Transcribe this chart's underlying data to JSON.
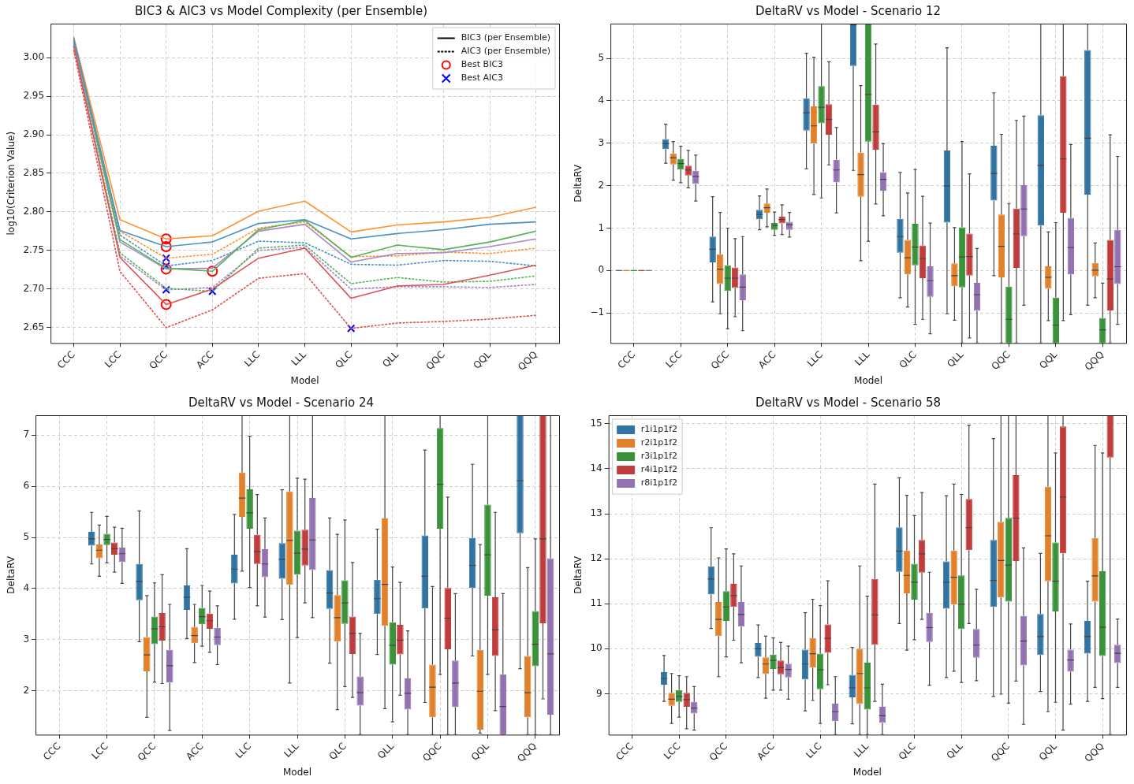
{
  "chart_data": [
    {
      "type": "line",
      "title": "BIC3 & AIC3 vs Model Complexity (per Ensemble)",
      "xlabel": "Model",
      "ylabel": "log10(Criterion Value)",
      "categories": [
        "CCC",
        "LCC",
        "QCC",
        "ACC",
        "LLC",
        "LLL",
        "QLC",
        "QLL",
        "QQC",
        "QQL",
        "QQQ"
      ],
      "ylim": [
        2.63,
        3.044
      ],
      "yticks": [
        2.65,
        {
          "value": 2.7,
          "label": "2.70"
        },
        2.75,
        {
          "value": 2.8,
          "label": "2.80"
        },
        2.85,
        {
          "value": 2.9,
          "label": "2.90"
        },
        2.95,
        {
          "value": 3.0,
          "label": "3.00"
        }
      ],
      "grid": true,
      "legend": "top right",
      "series": [
        {
          "color": "#4b92c3",
          "line_style": "solid",
          "values": [
            3.025,
            2.776,
            2.755,
            2.761,
            2.785,
            2.79,
            2.765,
            2.772,
            2.777,
            2.784,
            2.787
          ]
        },
        {
          "color": "#ff9232",
          "line_style": "solid",
          "values": [
            3.027,
            2.79,
            2.765,
            2.769,
            2.801,
            2.814,
            2.774,
            2.783,
            2.787,
            2.793,
            2.806
          ]
        },
        {
          "color": "#56b356",
          "line_style": "solid",
          "values": [
            3.026,
            2.764,
            2.727,
            2.723,
            2.777,
            2.789,
            2.741,
            2.757,
            2.751,
            2.761,
            2.775
          ]
        },
        {
          "color": "#de5253",
          "line_style": "solid",
          "values": [
            3.015,
            2.741,
            2.68,
            2.7,
            2.74,
            2.753,
            2.688,
            2.704,
            2.706,
            2.718,
            2.731
          ]
        },
        {
          "color": "#a985ca",
          "line_style": "solid",
          "values": [
            3.022,
            2.761,
            2.726,
            2.727,
            2.775,
            2.784,
            2.735,
            2.746,
            2.747,
            2.755,
            2.765
          ]
        },
        {
          "color": "#4b92c3",
          "line_style": "dashed",
          "values": [
            3.02,
            2.77,
            2.73,
            2.737,
            2.762,
            2.76,
            2.732,
            2.731,
            2.737,
            2.736,
            2.73
          ]
        },
        {
          "color": "#ff9232",
          "line_style": "dashed",
          "values": [
            3.022,
            2.775,
            2.74,
            2.745,
            2.779,
            2.787,
            2.742,
            2.743,
            2.748,
            2.746,
            2.753
          ]
        },
        {
          "color": "#56b356",
          "line_style": "dashed",
          "values": [
            3.018,
            2.747,
            2.701,
            2.697,
            2.753,
            2.757,
            2.707,
            2.715,
            2.709,
            2.71,
            2.717
          ]
        },
        {
          "color": "#de5253",
          "line_style": "dashed",
          "values": [
            3.01,
            2.723,
            2.65,
            2.673,
            2.714,
            2.72,
            2.649,
            2.656,
            2.658,
            2.661,
            2.666
          ]
        },
        {
          "color": "#a985ca",
          "line_style": "dashed",
          "values": [
            3.015,
            2.743,
            2.699,
            2.702,
            2.75,
            2.754,
            2.7,
            2.703,
            2.703,
            2.702,
            2.706
          ]
        },
        {
          "name": "BIC3 (per Ensemble)",
          "color": "#000000",
          "line_style": "solid",
          "values": [
            null,
            null,
            null,
            null,
            null,
            null,
            null,
            null,
            null,
            null,
            null
          ]
        },
        {
          "name": "AIC3 (per Ensemble)",
          "color": "#000000",
          "line_style": "dashed",
          "values": [
            null,
            null,
            null,
            null,
            null,
            null,
            null,
            null,
            null,
            null,
            null
          ]
        },
        {
          "name": "Best BIC3",
          "type": "scatter",
          "marker": "circle",
          "color": "#ff0000",
          "x": [
            "QCC",
            "QCC",
            "ACC",
            "QCC",
            "QCC"
          ],
          "values": [
            2.755,
            2.765,
            2.723,
            2.68,
            2.726
          ]
        },
        {
          "name": "Best AIC3",
          "type": "scatter",
          "marker": "cross",
          "color": "#0000ff",
          "x": [
            "QCC",
            "QCC",
            "ACC",
            "QLC",
            "QCC"
          ],
          "values": [
            2.73,
            2.74,
            2.697,
            2.649,
            2.699
          ]
        }
      ]
    },
    {
      "type": "box",
      "title": "DeltaRV vs Model - Scenario 12",
      "xlabel": "Model",
      "ylabel": "DeltaRV",
      "categories": [
        "CCC",
        "LCC",
        "QCC",
        "ACC",
        "LLC",
        "LLL",
        "QLC",
        "QLL",
        "QQC",
        "QQL",
        "QQQ"
      ],
      "ylim": [
        -1.71,
        5.82
      ],
      "yticks": [
        {
          "value": -1,
          "label": "−1"
        },
        0,
        1,
        2,
        3,
        4,
        5
      ],
      "grid": true,
      "series": [
        {
          "color": "#3274a1",
          "boxes": [
            {
              "low": 0,
              "q1": 0,
              "median": 0,
              "q3": 0,
              "high": 0
            },
            {
              "low": 2.53,
              "q1": 2.86,
              "median": 2.99,
              "q3": 3.1,
              "high": 3.45
            },
            {
              "low": -0.74,
              "q1": 0.19,
              "median": 0.5,
              "q3": 0.8,
              "high": 1.74
            },
            {
              "low": 0.96,
              "q1": 1.21,
              "median": 1.32,
              "q3": 1.43,
              "high": 1.76
            },
            {
              "low": 2.4,
              "q1": 3.3,
              "median": 3.72,
              "q3": 4.06,
              "high": 5.12
            },
            {
              "low": 2.36,
              "q1": 4.82,
              "median": 5.79,
              "q3": 5.82,
              "high": 5.82
            },
            {
              "low": -0.64,
              "q1": 0.42,
              "median": 0.8,
              "q3": 1.22,
              "high": 2.31
            },
            {
              "low": -1.02,
              "q1": 1.13,
              "median": 1.99,
              "q3": 2.83,
              "high": 5.25
            },
            {
              "low": -0.12,
              "q1": 1.65,
              "median": 2.29,
              "q3": 2.94,
              "high": 4.19
            },
            {
              "low": -1.71,
              "q1": 1.06,
              "median": 2.48,
              "q3": 3.66,
              "high": 5.82
            },
            {
              "low": -0.82,
              "q1": 1.79,
              "median": 3.12,
              "q3": 5.2,
              "high": 5.82
            }
          ]
        },
        {
          "color": "#e1812c",
          "boxes": [
            {
              "low": 0,
              "q1": 0,
              "median": 0,
              "q3": 0,
              "high": 0
            },
            {
              "low": 2.13,
              "q1": 2.5,
              "median": 2.66,
              "q3": 2.76,
              "high": 3.04
            },
            {
              "low": -1.02,
              "q1": -0.32,
              "median": 0.03,
              "q3": 0.38,
              "high": 1.37
            },
            {
              "low": 1.03,
              "q1": 1.36,
              "median": 1.48,
              "q3": 1.58,
              "high": 1.92
            },
            {
              "low": 1.79,
              "q1": 2.99,
              "median": 3.41,
              "q3": 3.87,
              "high": 5.03
            },
            {
              "low": 0.23,
              "q1": 1.74,
              "median": 2.26,
              "q3": 2.78,
              "high": 4.36
            },
            {
              "low": -0.86,
              "q1": -0.09,
              "median": 0.3,
              "q3": 0.72,
              "high": 1.83
            },
            {
              "low": -1.17,
              "q1": -0.37,
              "median": -0.12,
              "q3": 0.17,
              "high": 1.01
            },
            {
              "low": -1.71,
              "q1": -0.16,
              "median": 0.57,
              "q3": 1.32,
              "high": 3.21
            },
            {
              "low": -1.18,
              "q1": -0.43,
              "median": -0.16,
              "q3": 0.1,
              "high": 0.91
            },
            {
              "low": -0.64,
              "q1": -0.14,
              "median": 0.01,
              "q3": 0.18,
              "high": 0.65
            }
          ]
        },
        {
          "color": "#3a923a",
          "boxes": [
            {
              "low": 0,
              "q1": 0,
              "median": 0,
              "q3": 0,
              "high": 0
            },
            {
              "low": 2.07,
              "q1": 2.38,
              "median": 2.52,
              "q3": 2.63,
              "high": 2.93
            },
            {
              "low": -1.37,
              "q1": -0.48,
              "median": -0.18,
              "q3": 0.12,
              "high": 1.0
            },
            {
              "low": 0.83,
              "q1": 0.96,
              "median": 1.06,
              "q3": 1.12,
              "high": 1.38
            },
            {
              "low": 1.71,
              "q1": 3.47,
              "median": 3.85,
              "q3": 4.35,
              "high": 5.82
            },
            {
              "low": 0.69,
              "q1": 3.04,
              "median": 4.15,
              "q3": 5.82,
              "high": 5.82
            },
            {
              "low": -1.27,
              "q1": 0.12,
              "median": 0.55,
              "q3": 1.1,
              "high": 2.38
            },
            {
              "low": -1.71,
              "q1": -0.4,
              "median": 0.32,
              "q3": 1.02,
              "high": 3.04
            },
            {
              "low": -1.71,
              "q1": -1.71,
              "median": -1.15,
              "q3": -0.38,
              "high": 1.58
            },
            {
              "low": -1.71,
              "q1": -1.71,
              "median": -1.29,
              "q3": -0.64,
              "high": 1.13
            },
            {
              "low": -1.71,
              "q1": -1.71,
              "median": -1.4,
              "q3": -1.12,
              "high": -0.3
            }
          ]
        },
        {
          "color": "#c03d3e",
          "boxes": [
            {
              "low": 0,
              "q1": 0,
              "median": 0,
              "q3": 0,
              "high": 0
            },
            {
              "low": 1.95,
              "q1": 2.24,
              "median": 2.37,
              "q3": 2.47,
              "high": 2.83
            },
            {
              "low": -1.09,
              "q1": -0.41,
              "median": -0.18,
              "q3": 0.07,
              "high": 0.75
            },
            {
              "low": 0.85,
              "q1": 1.11,
              "median": 1.2,
              "q3": 1.27,
              "high": 1.55
            },
            {
              "low": 2.49,
              "q1": 3.2,
              "median": 3.56,
              "q3": 3.92,
              "high": 4.92
            },
            {
              "low": 1.57,
              "q1": 2.85,
              "median": 3.27,
              "q3": 3.91,
              "high": 5.34
            },
            {
              "low": -1.15,
              "q1": -0.18,
              "median": 0.28,
              "q3": 0.59,
              "high": 1.75
            },
            {
              "low": -1.59,
              "q1": -0.12,
              "median": 0.33,
              "q3": 0.87,
              "high": 2.28
            },
            {
              "low": -1.71,
              "q1": 0.06,
              "median": 0.86,
              "q3": 1.46,
              "high": 3.54
            },
            {
              "low": -1.18,
              "q1": 1.36,
              "median": 2.63,
              "q3": 4.58,
              "high": 5.82
            },
            {
              "low": -1.71,
              "q1": -0.94,
              "median": -0.2,
              "q3": 0.72,
              "high": 3.2
            }
          ]
        },
        {
          "color": "#9372b2",
          "boxes": [
            {
              "low": 0,
              "q1": 0,
              "median": 0,
              "q3": 0,
              "high": 0
            },
            {
              "low": 1.64,
              "q1": 2.04,
              "median": 2.22,
              "q3": 2.35,
              "high": 2.72
            },
            {
              "low": -1.42,
              "q1": -0.7,
              "median": -0.39,
              "q3": -0.09,
              "high": 0.8
            },
            {
              "low": 0.79,
              "q1": 0.96,
              "median": 1.08,
              "q3": 1.15,
              "high": 1.37
            },
            {
              "low": 1.36,
              "q1": 2.08,
              "median": 2.37,
              "q3": 2.61,
              "high": 3.37
            },
            {
              "low": 1.29,
              "q1": 1.88,
              "median": 2.15,
              "q3": 2.32,
              "high": 2.99
            },
            {
              "low": -1.49,
              "q1": -0.62,
              "median": -0.24,
              "q3": 0.1,
              "high": 1.12
            },
            {
              "low": -1.71,
              "q1": -0.95,
              "median": -0.57,
              "q3": -0.29,
              "high": 0.52
            },
            {
              "low": -0.82,
              "q1": 0.81,
              "median": 1.45,
              "q3": 2.01,
              "high": 3.64
            },
            {
              "low": -1.04,
              "q1": -0.09,
              "median": 0.54,
              "q3": 1.24,
              "high": 2.97
            },
            {
              "low": -1.27,
              "q1": -0.32,
              "median": 0.09,
              "q3": 0.96,
              "high": 2.69
            }
          ]
        }
      ]
    },
    {
      "type": "box",
      "title": "DeltaRV vs Model - Scenario 24",
      "xlabel": "Model",
      "ylabel": "DeltaRV",
      "categories": [
        "CCC",
        "LCC",
        "QCC",
        "ACC",
        "LLC",
        "LLL",
        "QLC",
        "QLL",
        "QQC",
        "QQL",
        "QQQ"
      ],
      "ylim": [
        1.14,
        7.39
      ],
      "yticks": [
        2,
        3,
        4,
        5,
        6,
        7
      ],
      "grid": true,
      "series": [
        {
          "color": "#3274a1",
          "boxes": [
            null,
            {
              "low": 4.48,
              "q1": 4.84,
              "median": 4.97,
              "q3": 5.11,
              "high": 5.49
            },
            {
              "low": 2.96,
              "q1": 3.77,
              "median": 4.14,
              "q3": 4.48,
              "high": 5.52
            },
            {
              "low": 3.02,
              "q1": 3.58,
              "median": 3.83,
              "q3": 4.06,
              "high": 4.78
            },
            {
              "low": 3.4,
              "q1": 4.1,
              "median": 4.38,
              "q3": 4.66,
              "high": 5.45
            },
            {
              "low": 3.39,
              "q1": 4.19,
              "median": 4.57,
              "q3": 4.89,
              "high": 5.93
            },
            {
              "low": 2.54,
              "q1": 3.6,
              "median": 3.91,
              "q3": 4.36,
              "high": 5.38
            },
            {
              "low": 2.71,
              "q1": 3.5,
              "median": 3.8,
              "q3": 4.17,
              "high": 5.16
            },
            {
              "low": 1.77,
              "q1": 3.61,
              "median": 4.24,
              "q3": 5.04,
              "high": 6.71
            },
            {
              "low": 2.68,
              "q1": 4.01,
              "median": 4.45,
              "q3": 4.99,
              "high": 6.43
            },
            {
              "low": 2.43,
              "q1": 5.08,
              "median": 6.11,
              "q3": 7.39,
              "high": 7.39
            }
          ]
        },
        {
          "color": "#e1812c",
          "boxes": [
            null,
            {
              "low": 4.24,
              "q1": 4.59,
              "median": 4.75,
              "q3": 4.86,
              "high": 5.24
            },
            {
              "low": 1.48,
              "q1": 2.38,
              "median": 2.7,
              "q3": 3.05,
              "high": 3.86
            },
            {
              "low": 2.55,
              "q1": 2.93,
              "median": 3.08,
              "q3": 3.25,
              "high": 3.69
            },
            {
              "low": 4.34,
              "q1": 5.4,
              "median": 5.77,
              "q3": 6.27,
              "high": 7.39
            },
            {
              "low": 2.15,
              "q1": 4.07,
              "median": 4.94,
              "q3": 5.9,
              "high": 7.39
            },
            {
              "low": 1.63,
              "q1": 2.96,
              "median": 3.43,
              "q3": 3.87,
              "high": 5.06
            },
            {
              "low": 1.65,
              "q1": 3.27,
              "median": 4.08,
              "q3": 5.37,
              "high": 7.39
            },
            {
              "low": 1.14,
              "q1": 1.48,
              "median": 2.07,
              "q3": 2.51,
              "high": 4.04
            },
            {
              "low": 1.17,
              "q1": 1.24,
              "median": 1.99,
              "q3": 2.8,
              "high": 4.86
            },
            {
              "low": 1.14,
              "q1": 1.48,
              "median": 1.96,
              "q3": 2.68,
              "high": 4.41
            }
          ]
        },
        {
          "color": "#3a923a",
          "boxes": [
            null,
            {
              "low": 4.5,
              "q1": 4.85,
              "median": 4.96,
              "q3": 5.07,
              "high": 5.41
            },
            {
              "low": 2.17,
              "q1": 2.91,
              "median": 3.21,
              "q3": 3.45,
              "high": 4.11
            },
            {
              "low": 2.87,
              "q1": 3.3,
              "median": 3.45,
              "q3": 3.62,
              "high": 4.06
            },
            {
              "low": 4.02,
              "q1": 5.17,
              "median": 5.48,
              "q3": 5.94,
              "high": 6.98
            },
            {
              "low": 3.04,
              "q1": 4.27,
              "median": 4.69,
              "q3": 5.13,
              "high": 6.16
            },
            {
              "low": 2.08,
              "q1": 3.31,
              "median": 3.72,
              "q3": 4.16,
              "high": 5.34
            },
            {
              "low": 1.39,
              "q1": 2.51,
              "median": 2.89,
              "q3": 3.34,
              "high": 4.42
            },
            {
              "low": 2.32,
              "q1": 5.17,
              "median": 6.04,
              "q3": 7.14,
              "high": 7.39
            },
            {
              "low": 2.32,
              "q1": 3.86,
              "median": 4.66,
              "q3": 5.64,
              "high": 7.39
            },
            {
              "low": 1.14,
              "q1": 2.48,
              "median": 2.91,
              "q3": 3.56,
              "high": 4.97
            }
          ]
        },
        {
          "color": "#c03d3e",
          "boxes": [
            null,
            {
              "low": 4.32,
              "q1": 4.66,
              "median": 4.78,
              "q3": 4.9,
              "high": 5.2
            },
            {
              "low": 2.14,
              "q1": 2.98,
              "median": 3.25,
              "q3": 3.52,
              "high": 4.27
            },
            {
              "low": 2.75,
              "q1": 3.21,
              "median": 3.37,
              "q3": 3.51,
              "high": 3.95
            },
            {
              "low": 3.66,
              "q1": 4.48,
              "median": 4.72,
              "q3": 5.05,
              "high": 5.84
            },
            {
              "low": 3.72,
              "q1": 4.45,
              "median": 4.77,
              "q3": 5.15,
              "high": 6.14
            },
            {
              "low": 1.87,
              "q1": 2.72,
              "median": 3.12,
              "q3": 3.45,
              "high": 4.51
            },
            {
              "low": 1.91,
              "q1": 2.71,
              "median": 2.99,
              "q3": 3.29,
              "high": 4.12
            },
            {
              "low": 1.14,
              "q1": 2.81,
              "median": 3.42,
              "q3": 4.01,
              "high": 5.79
            },
            {
              "low": 1.61,
              "q1": 2.68,
              "median": 3.19,
              "q3": 3.83,
              "high": 5.49
            },
            {
              "low": 1.84,
              "q1": 3.32,
              "median": 4.97,
              "q3": 7.39,
              "high": 7.39
            }
          ]
        },
        {
          "color": "#9372b2",
          "boxes": [
            null,
            {
              "low": 4.1,
              "q1": 4.52,
              "median": 4.68,
              "q3": 4.8,
              "high": 5.18
            },
            {
              "low": 1.22,
              "q1": 2.16,
              "median": 2.49,
              "q3": 2.8,
              "high": 3.69
            },
            {
              "low": 2.51,
              "q1": 2.89,
              "median": 3.05,
              "q3": 3.23,
              "high": 3.66
            },
            {
              "low": 3.44,
              "q1": 4.22,
              "median": 4.48,
              "q3": 4.77,
              "high": 5.38
            },
            {
              "low": 3.43,
              "q1": 4.36,
              "median": 4.95,
              "q3": 5.77,
              "high": 7.39
            },
            {
              "low": 1.14,
              "q1": 1.71,
              "median": 1.96,
              "q3": 2.28,
              "high": 3.12
            },
            {
              "low": 1.14,
              "q1": 1.63,
              "median": 1.95,
              "q3": 2.24,
              "high": 3.17
            },
            {
              "low": 1.14,
              "q1": 1.68,
              "median": 2.15,
              "q3": 2.59,
              "high": 3.9
            },
            {
              "low": 1.14,
              "q1": 1.14,
              "median": 1.69,
              "q3": 2.32,
              "high": 3.9
            },
            {
              "low": 1.14,
              "q1": 1.53,
              "median": 2.72,
              "q3": 4.59,
              "high": 7.39
            }
          ]
        }
      ]
    },
    {
      "type": "box",
      "title": "DeltaRV vs Model - Scenario 58",
      "xlabel": "Model",
      "ylabel": "DeltaRV",
      "categories": [
        "CCC",
        "LCC",
        "QCC",
        "ACC",
        "LLC",
        "LLL",
        "QLC",
        "QLL",
        "QQC",
        "QQL",
        "QQQ"
      ],
      "ylim": [
        8.09,
        15.19
      ],
      "yticks": [
        9,
        10,
        11,
        12,
        13,
        14,
        15
      ],
      "grid": true,
      "legend": "top left",
      "series": [
        {
          "name": "r1i1p1f2",
          "color": "#3274a1",
          "boxes": [
            null,
            {
              "low": 8.83,
              "q1": 9.2,
              "median": 9.34,
              "q3": 9.48,
              "high": 9.85
            },
            {
              "low": 10.45,
              "q1": 11.21,
              "median": 11.55,
              "q3": 11.83,
              "high": 12.69
            },
            {
              "low": 9.36,
              "q1": 9.82,
              "median": 10.0,
              "q3": 10.13,
              "high": 10.53
            },
            {
              "low": 8.62,
              "q1": 9.32,
              "median": 9.66,
              "q3": 9.98,
              "high": 10.8
            },
            {
              "low": 8.33,
              "q1": 8.92,
              "median": 9.13,
              "q3": 9.42,
              "high": 10.03
            },
            {
              "low": 10.56,
              "q1": 11.71,
              "median": 12.17,
              "q3": 12.7,
              "high": 13.8
            },
            {
              "low": 9.36,
              "q1": 10.89,
              "median": 11.48,
              "q3": 11.94,
              "high": 13.4
            },
            {
              "low": 8.94,
              "q1": 10.93,
              "median": 11.52,
              "q3": 12.42,
              "high": 14.67
            },
            {
              "low": 9.05,
              "q1": 9.86,
              "median": 10.27,
              "q3": 10.77,
              "high": 12.12
            },
            {
              "low": 8.83,
              "q1": 9.89,
              "median": 10.27,
              "q3": 10.62,
              "high": 11.5
            }
          ]
        },
        {
          "name": "r2i1p1f2",
          "color": "#e1812c",
          "boxes": [
            null,
            {
              "low": 8.34,
              "q1": 8.73,
              "median": 8.88,
              "q3": 9.02,
              "high": 9.45
            },
            {
              "low": 9.38,
              "q1": 10.28,
              "median": 10.65,
              "q3": 11.04,
              "high": 12.02
            },
            {
              "low": 8.9,
              "q1": 9.44,
              "median": 9.66,
              "q3": 9.81,
              "high": 10.28
            },
            {
              "low": 8.85,
              "q1": 9.58,
              "median": 9.89,
              "q3": 10.24,
              "high": 11.1
            },
            {
              "low": 8.09,
              "q1": 8.77,
              "median": 9.45,
              "q3": 10.0,
              "high": 11.84
            },
            {
              "low": 9.97,
              "q1": 11.23,
              "median": 11.63,
              "q3": 12.18,
              "high": 13.41
            },
            {
              "low": 9.5,
              "q1": 10.98,
              "median": 11.59,
              "q3": 12.18,
              "high": 13.66
            },
            {
              "low": 8.99,
              "q1": 11.14,
              "median": 11.96,
              "q3": 12.82,
              "high": 15.19
            },
            {
              "low": 8.6,
              "q1": 11.5,
              "median": 12.51,
              "q3": 13.6,
              "high": 15.19
            },
            {
              "low": 9.14,
              "q1": 11.05,
              "median": 11.62,
              "q3": 12.46,
              "high": 14.52
            }
          ]
        },
        {
          "name": "r3i1p1f2",
          "color": "#3a923a",
          "boxes": [
            null,
            {
              "low": 8.48,
              "q1": 8.82,
              "median": 8.94,
              "q3": 9.08,
              "high": 9.4
            },
            {
              "low": 9.82,
              "q1": 10.62,
              "median": 10.93,
              "q3": 11.28,
              "high": 12.22
            },
            {
              "low": 9.08,
              "q1": 9.55,
              "median": 9.74,
              "q3": 9.87,
              "high": 10.24
            },
            {
              "low": 8.34,
              "q1": 9.1,
              "median": 9.53,
              "q3": 9.89,
              "high": 10.96
            },
            {
              "low": 8.09,
              "q1": 8.65,
              "median": 9.13,
              "q3": 9.69,
              "high": 11.17
            },
            {
              "low": 10.2,
              "q1": 11.09,
              "median": 11.48,
              "q3": 11.89,
              "high": 12.96
            },
            {
              "low": 9.25,
              "q1": 10.44,
              "median": 10.99,
              "q3": 11.63,
              "high": 13.43
            },
            {
              "low": 8.79,
              "q1": 11.05,
              "median": 11.86,
              "q3": 12.91,
              "high": 15.19
            },
            {
              "low": 8.81,
              "q1": 10.83,
              "median": 11.5,
              "q3": 12.36,
              "high": 14.35
            },
            {
              "low": 8.89,
              "q1": 9.84,
              "median": 10.48,
              "q3": 11.72,
              "high": 14.35
            }
          ]
        },
        {
          "name": "r4i1p1f2",
          "color": "#c03d3e",
          "boxes": [
            null,
            {
              "low": 8.22,
              "q1": 8.71,
              "median": 8.87,
              "q3": 9.02,
              "high": 9.38
            },
            {
              "low": 10.19,
              "q1": 10.93,
              "median": 11.18,
              "q3": 11.44,
              "high": 12.11
            },
            {
              "low": 9.08,
              "q1": 9.43,
              "median": 9.58,
              "q3": 9.74,
              "high": 10.14
            },
            {
              "low": 9.2,
              "q1": 9.91,
              "median": 10.23,
              "q3": 10.54,
              "high": 11.51
            },
            {
              "low": 8.83,
              "q1": 10.09,
              "median": 10.75,
              "q3": 11.55,
              "high": 13.66
            },
            {
              "low": 10.65,
              "q1": 11.69,
              "median": 12.11,
              "q3": 12.42,
              "high": 13.47
            },
            {
              "low": 10.56,
              "q1": 12.19,
              "median": 12.69,
              "q3": 13.33,
              "high": 14.97
            },
            {
              "low": 9.28,
              "q1": 11.95,
              "median": 12.9,
              "q3": 13.86,
              "high": 15.19
            },
            {
              "low": 8.19,
              "q1": 12.12,
              "median": 13.37,
              "q3": 14.94,
              "high": 15.19
            },
            {
              "low": 8.09,
              "q1": 14.25,
              "median": 15.19,
              "q3": 15.19,
              "high": 15.19
            }
          ]
        },
        {
          "name": "r8i1p1f2",
          "color": "#9372b2",
          "boxes": [
            null,
            {
              "low": 8.19,
              "q1": 8.56,
              "median": 8.68,
              "q3": 8.82,
              "high": 9.16
            },
            {
              "low": 9.69,
              "q1": 10.49,
              "median": 10.76,
              "q3": 11.04,
              "high": 11.84
            },
            {
              "low": 8.88,
              "q1": 9.36,
              "median": 9.54,
              "q3": 9.67,
              "high": 10.06
            },
            {
              "low": 8.09,
              "q1": 8.39,
              "median": 8.6,
              "q3": 8.78,
              "high": 9.38
            },
            {
              "low": 8.09,
              "q1": 8.35,
              "median": 8.51,
              "q3": 8.71,
              "high": 9.21
            },
            {
              "low": 9.19,
              "q1": 10.15,
              "median": 10.47,
              "q3": 10.8,
              "high": 11.7
            },
            {
              "low": 9.29,
              "q1": 9.8,
              "median": 10.08,
              "q3": 10.44,
              "high": 11.32
            },
            {
              "low": 8.32,
              "q1": 9.63,
              "median": 10.17,
              "q3": 10.73,
              "high": 12.24
            },
            {
              "low": 8.77,
              "q1": 9.49,
              "median": 9.75,
              "q3": 9.98,
              "high": 10.55
            },
            {
              "low": 9.14,
              "q1": 9.68,
              "median": 9.9,
              "q3": 10.09,
              "high": 10.66
            }
          ]
        }
      ]
    }
  ]
}
